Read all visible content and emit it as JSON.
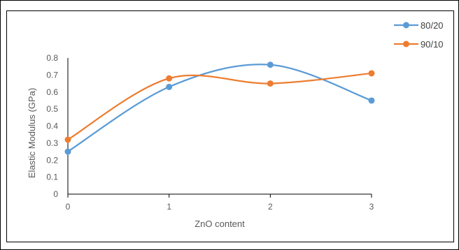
{
  "chart_data": {
    "type": "line",
    "smooth": true,
    "x": [
      0,
      1,
      2,
      3
    ],
    "series": [
      {
        "name": "80/20",
        "values": [
          0.25,
          0.63,
          0.76,
          0.55
        ],
        "color": "#5B9BD5"
      },
      {
        "name": "90/10",
        "values": [
          0.32,
          0.68,
          0.65,
          0.71
        ],
        "color": "#ED7D31"
      }
    ],
    "title": "",
    "xlabel": "ZnO content",
    "ylabel": "Elastic Modulus (GPa)",
    "ylim": [
      0,
      0.8
    ],
    "yticks": [
      "0",
      "0.1",
      "0.2",
      "0.3",
      "0.4",
      "0.5",
      "0.6",
      "0.7",
      "0.8"
    ],
    "xticks": [
      "0",
      "1",
      "2",
      "3"
    ],
    "grid": false,
    "legend_position": "top-right"
  }
}
